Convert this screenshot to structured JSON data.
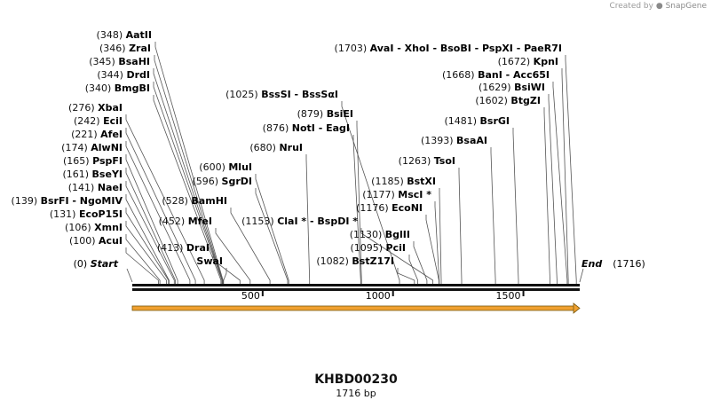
{
  "watermark": {
    "prefix": "Created by",
    "brand": "SnapGene"
  },
  "map": {
    "name": "KHBD00230",
    "length_label": "1716 bp",
    "length": 1716,
    "start_label": "Start",
    "start_pos": "(0)",
    "end_label": "End",
    "end_pos": "(1716)",
    "ticks": [
      "500",
      "1000",
      "1500"
    ],
    "feature_color": "#f0a030"
  },
  "sites": [
    {
      "pos": "(348)",
      "name": "AatII",
      "bp": 348
    },
    {
      "pos": "(346)",
      "name": "ZraI",
      "bp": 346
    },
    {
      "pos": "(345)",
      "name": "BsaHI",
      "bp": 345
    },
    {
      "pos": "(344)",
      "name": "DrdI",
      "bp": 344
    },
    {
      "pos": "(340)",
      "name": "BmgBI",
      "bp": 340
    },
    {
      "pos": "(276)",
      "name": "XbaI",
      "bp": 276
    },
    {
      "pos": "(242)",
      "name": "EciI",
      "bp": 242
    },
    {
      "pos": "(221)",
      "name": "AfeI",
      "bp": 221
    },
    {
      "pos": "(174)",
      "name": "AlwNI",
      "bp": 174
    },
    {
      "pos": "(165)",
      "name": "PspFI",
      "bp": 165
    },
    {
      "pos": "(161)",
      "name": "BseYI",
      "bp": 161
    },
    {
      "pos": "(141)",
      "name": "NaeI",
      "bp": 141
    },
    {
      "pos": "(139)",
      "name": "BsrFI  -  NgoMIV",
      "bp": 139
    },
    {
      "pos": "(131)",
      "name": "EcoP15I",
      "bp": 131
    },
    {
      "pos": "(106)",
      "name": "XmnI",
      "bp": 106
    },
    {
      "pos": "(100)",
      "name": "AcuI",
      "bp": 100
    },
    {
      "pos": "(600)",
      "name": "MluI",
      "bp": 600
    },
    {
      "pos": "(596)",
      "name": "SgrDI",
      "bp": 596
    },
    {
      "pos": "(528)",
      "name": "BamHI",
      "bp": 528
    },
    {
      "pos": "(452)",
      "name": "MfeI",
      "bp": 452
    },
    {
      "pos": "(413)",
      "name": "DraI",
      "bp": 413
    },
    {
      "pos": "",
      "name": "SwaI",
      "bp": 350
    },
    {
      "pos": "(680)",
      "name": "NruI",
      "bp": 680
    },
    {
      "pos": "(876)",
      "name": "NotI  -  EagI",
      "bp": 876
    },
    {
      "pos": "(879)",
      "name": "BsiEI",
      "bp": 879
    },
    {
      "pos": "(1025)",
      "name": "BssSI  -  BssSαI",
      "bp": 1025
    },
    {
      "pos": "(1153)",
      "name": "ClaI *  -  BspDI *",
      "bp": 1153
    },
    {
      "pos": "(1082)",
      "name": "BstZ17I",
      "bp": 1082
    },
    {
      "pos": "(1095)",
      "name": "PciI",
      "bp": 1095
    },
    {
      "pos": "(1130)",
      "name": "BglII",
      "bp": 1130
    },
    {
      "pos": "(1176)",
      "name": "EcoNI",
      "bp": 1176
    },
    {
      "pos": "(1177)",
      "name": "MscI *",
      "bp": 1177
    },
    {
      "pos": "(1185)",
      "name": "BstXI",
      "bp": 1185
    },
    {
      "pos": "(1263)",
      "name": "TsoI",
      "bp": 1263
    },
    {
      "pos": "(1393)",
      "name": "BsaAI",
      "bp": 1393
    },
    {
      "pos": "(1481)",
      "name": "BsrGI",
      "bp": 1481
    },
    {
      "pos": "(1602)",
      "name": "BtgZI",
      "bp": 1602
    },
    {
      "pos": "(1629)",
      "name": "BsiWI",
      "bp": 1629
    },
    {
      "pos": "(1668)",
      "name": "BanI  -  Acc65I",
      "bp": 1668
    },
    {
      "pos": "(1672)",
      "name": "KpnI",
      "bp": 1672
    },
    {
      "pos": "(1703)",
      "name": "AvaI  -  XhoI  -  BsoBI  -  PspXI  -  PaeR7I",
      "bp": 1703
    }
  ]
}
